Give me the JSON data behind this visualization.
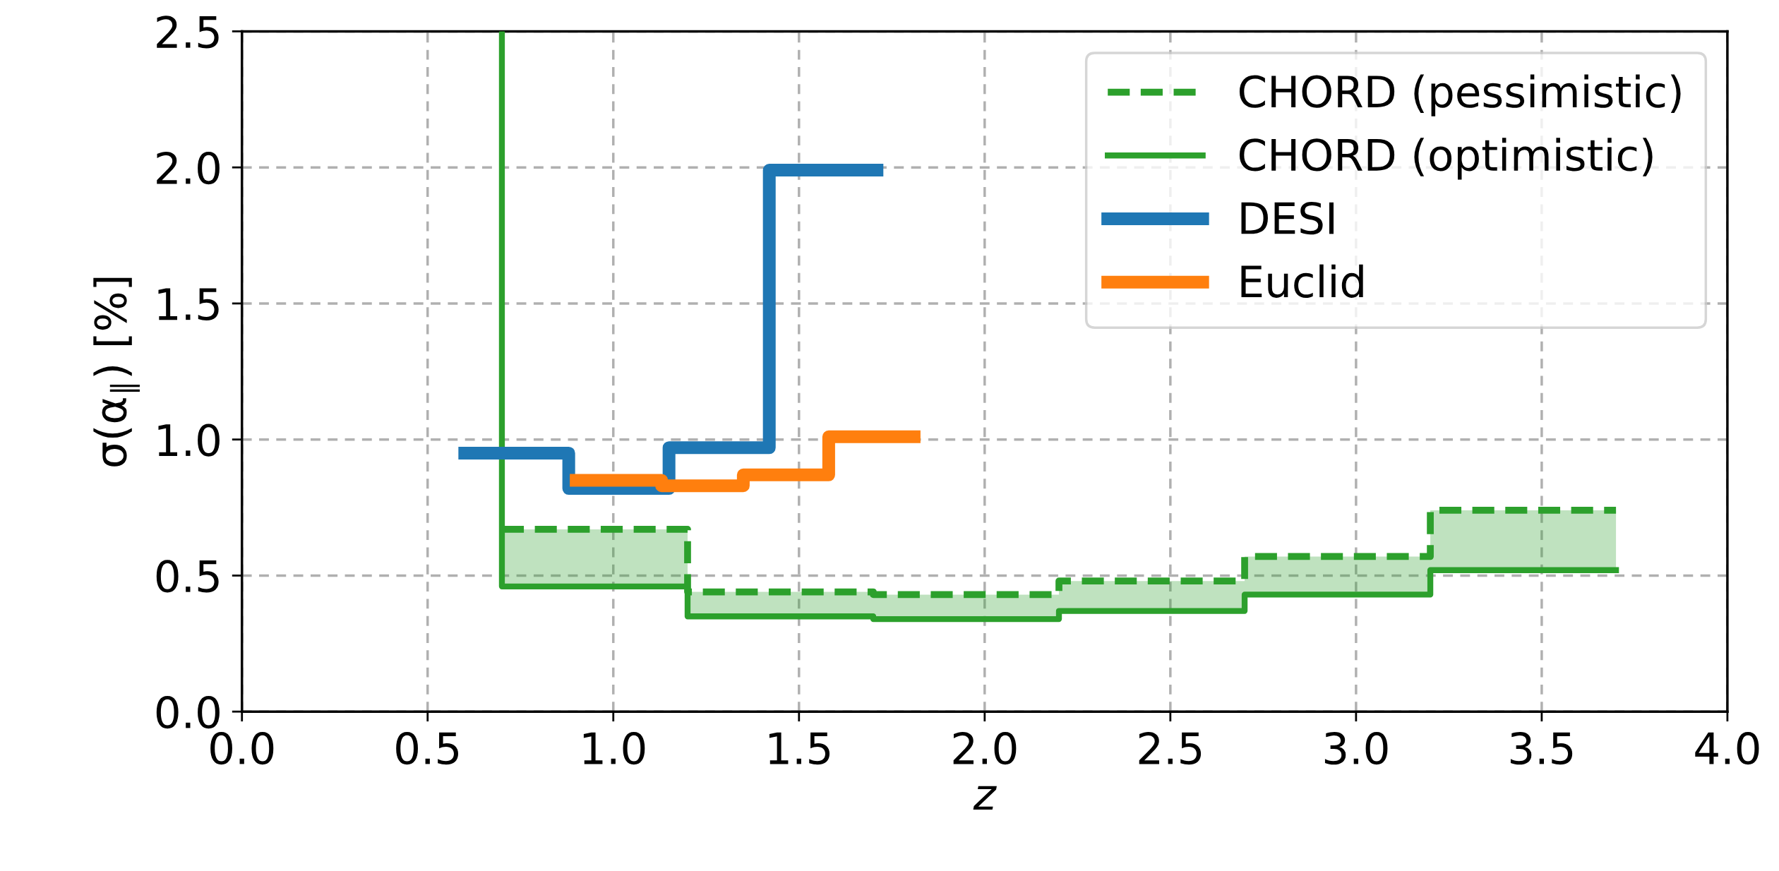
{
  "chart_data": {
    "type": "step",
    "xlabel": "z",
    "ylabel": "σ(α$_{∥}$) [%]",
    "xlim": [
      0.0,
      4.0
    ],
    "ylim": [
      0.0,
      2.5
    ],
    "xticks": [
      {
        "value": 0,
        "label": "0.0"
      },
      0.5,
      {
        "value": 1,
        "label": "1.0"
      },
      1.5,
      {
        "value": 2,
        "label": "2.0"
      },
      2.5,
      {
        "value": 3,
        "label": "3.0"
      },
      3.5,
      {
        "value": 4,
        "label": "4.0"
      }
    ],
    "yticks": [
      {
        "value": 0,
        "label": "0.0"
      },
      0.5,
      {
        "value": 1,
        "label": "1.0"
      },
      1.5,
      {
        "value": 2,
        "label": "2.0"
      },
      2.5
    ],
    "grid": true,
    "legend": "top right",
    "series": [
      {
        "name": "CHORD (pessimistic)",
        "color": "#2ca02c",
        "line_style": "dashed",
        "x": [
          0.7,
          1.2,
          1.7,
          2.2,
          2.7,
          3.2,
          3.7
        ],
        "values": [
          0.67,
          0.44,
          0.43,
          0.48,
          0.57,
          0.74,
          0.74
        ],
        "lower": [
          0.46,
          0.35,
          0.34,
          0.37,
          0.43,
          0.52,
          0.52
        ],
        "upper": [
          0.67,
          0.44,
          0.43,
          0.48,
          0.57,
          0.74,
          0.74
        ]
      },
      {
        "name": "CHORD (optimistic)",
        "color": "#2ca02c",
        "line_style": "solid",
        "x": [
          0.7,
          0.7,
          1.2,
          1.7,
          2.2,
          2.7,
          3.2,
          3.7
        ],
        "values": [
          2.5,
          0.46,
          0.35,
          0.34,
          0.37,
          0.43,
          0.52,
          0.52
        ]
      },
      {
        "name": "DESI",
        "color": "#1f77b4",
        "line_style": "solid",
        "x": [
          0.6,
          0.88,
          1.15,
          1.42,
          1.71
        ],
        "values": [
          0.95,
          0.82,
          0.97,
          1.99,
          1.99
        ]
      },
      {
        "name": "Euclid",
        "color": "#ff7f0e",
        "line_style": "solid",
        "x": [
          0.9,
          1.13,
          1.35,
          1.58,
          1.81
        ],
        "values": [
          0.85,
          0.83,
          0.87,
          1.01,
          1.01
        ]
      }
    ]
  }
}
